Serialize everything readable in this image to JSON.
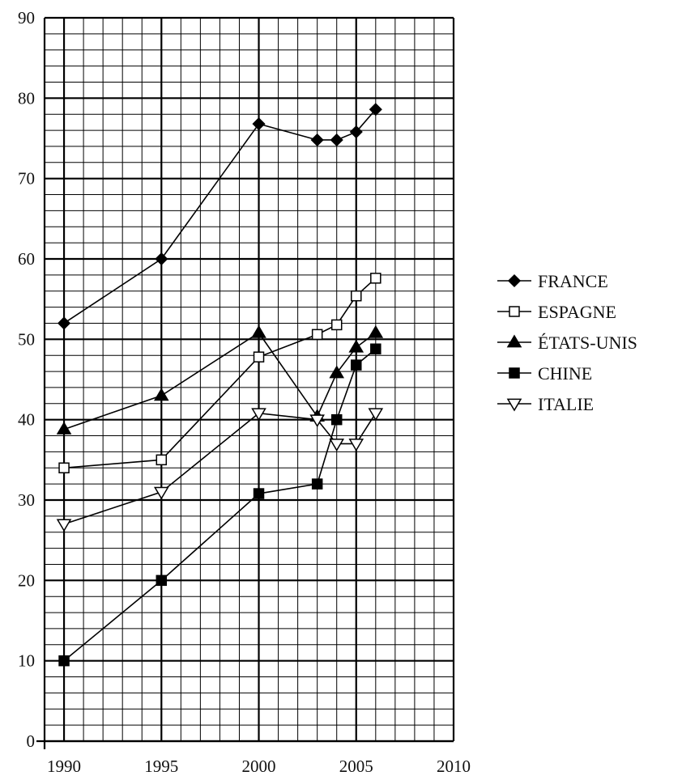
{
  "chart_data": {
    "type": "line",
    "x": [
      1990,
      1995,
      2000,
      2003,
      2004,
      2005,
      2006
    ],
    "xlim": [
      1989,
      2010
    ],
    "ylim": [
      0,
      90
    ],
    "x_ticks": [
      1990,
      1995,
      2000,
      2005,
      2010
    ],
    "y_ticks": [
      0,
      10,
      20,
      30,
      40,
      50,
      60,
      70,
      80,
      90
    ],
    "grid": true,
    "legend_position": "right",
    "series": [
      {
        "name": "FRANCE",
        "marker": "diamond",
        "fill": "#000000",
        "values": [
          52,
          60,
          76.8,
          74.8,
          74.8,
          75.8,
          78.6
        ]
      },
      {
        "name": "ESPAGNE",
        "marker": "square",
        "fill": "#ffffff",
        "values": [
          34,
          35,
          47.8,
          50.6,
          51.8,
          55.4,
          57.6
        ]
      },
      {
        "name": "ÉTATS-UNIS",
        "marker": "triangle-up",
        "fill": "#000000",
        "values": [
          38.8,
          43,
          50.8,
          40.4,
          45.8,
          49,
          50.8
        ]
      },
      {
        "name": "CHINE",
        "marker": "square",
        "fill": "#000000",
        "values": [
          10,
          20,
          30.8,
          32,
          40,
          46.8,
          48.8
        ]
      },
      {
        "name": "ITALIE",
        "marker": "triangle-down",
        "fill": "#ffffff",
        "values": [
          27,
          31,
          40.8,
          40,
          37,
          37,
          40.8
        ]
      }
    ]
  }
}
